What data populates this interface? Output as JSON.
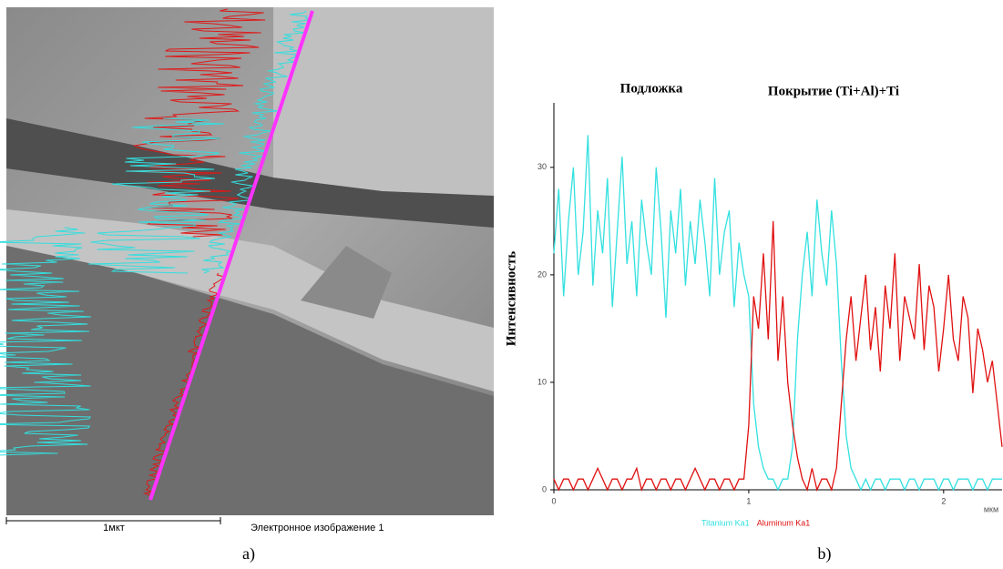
{
  "image": {
    "scale_label": "1мкт",
    "caption": "Электронное изображение 1",
    "panel_label": "a)"
  },
  "panel_label": "b)",
  "chart_data": {
    "type": "line",
    "annotations": [
      "Подложка",
      "Покрытие (Ti+Al)+Ti"
    ],
    "ylabel": "Интенсивность",
    "xlabel": "мкм",
    "x": [
      0,
      0.025,
      0.05,
      0.075,
      0.1,
      0.125,
      0.15,
      0.175,
      0.2,
      0.225,
      0.25,
      0.275,
      0.3,
      0.325,
      0.35,
      0.375,
      0.4,
      0.425,
      0.45,
      0.475,
      0.5,
      0.525,
      0.55,
      0.575,
      0.6,
      0.625,
      0.65,
      0.675,
      0.7,
      0.725,
      0.75,
      0.775,
      0.8,
      0.825,
      0.85,
      0.875,
      0.9,
      0.925,
      0.95,
      0.975,
      1,
      1.025,
      1.05,
      1.075,
      1.1,
      1.125,
      1.15,
      1.175,
      1.2,
      1.225,
      1.25,
      1.275,
      1.3,
      1.325,
      1.35,
      1.375,
      1.4,
      1.425,
      1.45,
      1.475,
      1.5,
      1.525,
      1.55,
      1.575,
      1.6,
      1.625,
      1.65,
      1.675,
      1.7,
      1.725,
      1.75,
      1.775,
      1.8,
      1.825,
      1.85,
      1.875,
      1.9,
      1.925,
      1.95,
      1.975,
      2,
      2.025,
      2.05,
      2.075,
      2.1,
      2.125,
      2.15,
      2.175,
      2.2,
      2.225,
      2.25,
      2.275,
      2.3
    ],
    "series": [
      {
        "name": "Titanium Ka1",
        "color": "#33e0e0",
        "values": [
          22,
          28,
          18,
          25,
          30,
          20,
          24,
          33,
          19,
          26,
          22,
          29,
          17,
          24,
          31,
          21,
          25,
          18,
          27,
          23,
          20,
          30,
          24,
          16,
          26,
          22,
          28,
          19,
          25,
          21,
          27,
          23,
          18,
          29,
          20,
          24,
          26,
          17,
          23,
          20,
          18,
          8,
          4,
          2,
          1,
          1,
          0,
          1,
          1,
          4,
          14,
          20,
          24,
          18,
          27,
          22,
          19,
          26,
          21,
          12,
          5,
          2,
          1,
          0,
          1,
          0,
          1,
          1,
          0,
          1,
          1,
          1,
          0,
          1,
          1,
          0,
          1,
          1,
          1,
          0,
          1,
          1,
          0,
          1,
          1,
          1,
          0,
          1,
          1,
          0,
          1,
          1,
          1
        ]
      },
      {
        "name": "Aluminum Ka1",
        "color": "#e01010",
        "values": [
          1,
          0,
          1,
          1,
          0,
          1,
          1,
          0,
          1,
          2,
          1,
          0,
          1,
          1,
          0,
          1,
          1,
          2,
          0,
          1,
          1,
          0,
          1,
          1,
          0,
          1,
          1,
          0,
          1,
          2,
          1,
          0,
          1,
          1,
          0,
          1,
          1,
          0,
          1,
          1,
          6,
          18,
          15,
          22,
          14,
          25,
          12,
          18,
          10,
          6,
          3,
          1,
          0,
          2,
          0,
          1,
          1,
          0,
          2,
          8,
          14,
          18,
          12,
          16,
          20,
          13,
          17,
          11,
          19,
          15,
          22,
          12,
          18,
          16,
          14,
          21,
          13,
          19,
          17,
          11,
          15,
          20,
          14,
          12,
          18,
          16,
          9,
          15,
          13,
          10,
          12,
          8,
          4
        ]
      }
    ],
    "xlim": [
      0,
      2.3
    ],
    "ylim": [
      0,
      36
    ],
    "xticks": [
      0,
      1,
      2
    ],
    "yticks": [
      0,
      10,
      20,
      30
    ]
  }
}
